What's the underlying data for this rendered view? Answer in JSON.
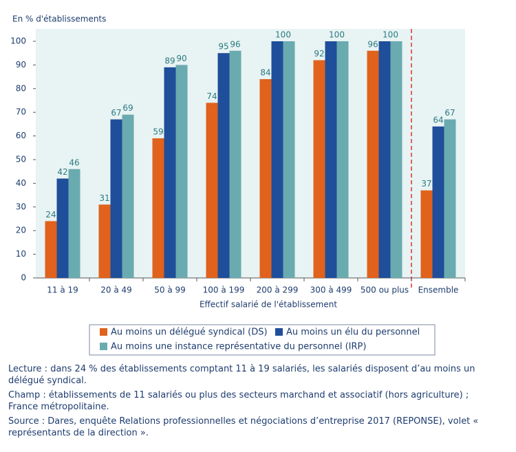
{
  "chart_data": {
    "type": "bar",
    "y_axis_label": "En % d'établissements",
    "x_axis_label": "Effectif salarié de l'établissement",
    "categories": [
      "11 à 19",
      "20 à 49",
      "50 à 99",
      "100 à 199",
      "200 à 299",
      "300 à 499",
      "500 ou plus",
      "Ensemble"
    ],
    "series": [
      {
        "name": "Au moins un délégué syndical (DS)",
        "color": "#e0621c",
        "values": [
          24,
          31,
          59,
          74,
          84,
          92,
          96,
          37
        ]
      },
      {
        "name": "Au moins un élu du personnel",
        "color": "#1f4e9a",
        "values": [
          42,
          67,
          89,
          95,
          100,
          100,
          100,
          64
        ]
      },
      {
        "name": "Au moins une instance représentative du personnel (IRP)",
        "color": "#6aabb0",
        "values": [
          46,
          69,
          90,
          96,
          100,
          100,
          100,
          67
        ],
        "value_labels": [
          "46",
          "69",
          "90",
          "96",
          null,
          null,
          null,
          "67"
        ]
      }
    ],
    "ylim": [
      0,
      100
    ],
    "yticks": [
      0,
      10,
      20,
      30,
      40,
      50,
      60,
      70,
      80,
      90,
      100
    ],
    "notes": [
      "Lecture : dans 24 % des établissements comptant 11 à 19 salariés, les salariés disposent d’au moins un délégué syndical.",
      "Champ : établissements de 11 salariés ou plus des secteurs marchand et associatif (hors agriculture) ; France métropolitaine.",
      "Source : Dares, enquête Relations professionnelles et négociations d’entreprise 2017 (REPONSE), volet « représentants de la direction »."
    ]
  }
}
